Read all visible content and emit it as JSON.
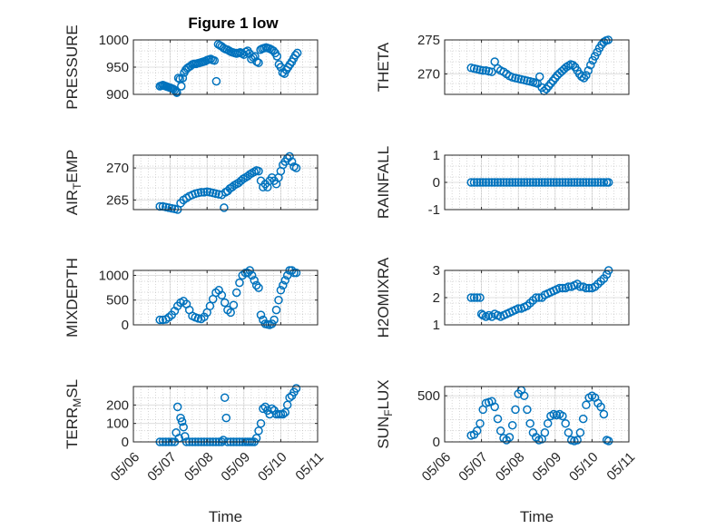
{
  "figure": {
    "title": "Figure 1 low"
  },
  "colors": {
    "marker": "#0072BD",
    "axis": "#262626",
    "grid": "#b0b0b0",
    "background": "#ffffff"
  },
  "chart_data": [
    {
      "type": "scatter",
      "title": "Figure 1 low",
      "ylabel": "PRESSURE",
      "ylim": [
        900,
        1000
      ],
      "yticks": [
        900,
        950,
        1000
      ],
      "xlim": [
        0,
        5
      ],
      "xticks": [
        0,
        1,
        2,
        3,
        4,
        5
      ],
      "xticklabels": [
        "05/06",
        "05/07",
        "05/08",
        "05/09",
        "05/10",
        "05/11"
      ],
      "xlabel": "",
      "grid": true,
      "x": [
        0.72,
        0.76,
        0.8,
        0.84,
        0.88,
        0.92,
        0.96,
        1.0,
        1.04,
        1.08,
        1.12,
        1.16,
        1.18,
        1.22,
        1.26,
        1.3,
        1.34,
        1.38,
        1.42,
        1.46,
        1.5,
        1.55,
        1.6,
        1.65,
        1.7,
        1.75,
        1.8,
        1.85,
        1.9,
        1.95,
        2.0,
        2.05,
        2.1,
        2.15,
        2.2,
        2.25,
        2.3,
        2.35,
        2.4,
        2.45,
        2.5,
        2.55,
        2.6,
        2.65,
        2.7,
        2.75,
        2.8,
        2.85,
        2.9,
        2.95,
        3.0,
        3.05,
        3.1,
        3.15,
        3.2,
        3.25,
        3.3,
        3.35,
        3.4,
        3.45,
        3.5,
        3.55,
        3.6,
        3.65,
        3.7,
        3.75,
        3.8,
        3.85,
        3.9,
        3.95,
        4.0,
        4.05,
        4.1,
        4.15,
        4.2,
        4.25,
        4.3,
        4.35,
        4.4,
        4.45
      ],
      "y": [
        915,
        916,
        917,
        916,
        915,
        914,
        913,
        912,
        911,
        910,
        908,
        905,
        903,
        930,
        928,
        915,
        930,
        940,
        945,
        948,
        950,
        952,
        955,
        956,
        956,
        957,
        958,
        959,
        960,
        961,
        963,
        964,
        965,
        963,
        962,
        924,
        992,
        990,
        988,
        985,
        983,
        982,
        980,
        978,
        977,
        976,
        975,
        976,
        977,
        975,
        973,
        978,
        980,
        975,
        965,
        968,
        970,
        960,
        958,
        982,
        984,
        985,
        986,
        985,
        984,
        982,
        980,
        976,
        970,
        955,
        950,
        940,
        938,
        945,
        950,
        955,
        960,
        966,
        972,
        976
      ]
    },
    {
      "type": "scatter",
      "ylabel": "THETA",
      "ylim": [
        267,
        275
      ],
      "yticks": [
        270,
        275
      ],
      "xlim": [
        0,
        5
      ],
      "xticks": [
        0,
        1,
        2,
        3,
        4,
        5
      ],
      "xticklabels": [
        "05/06",
        "05/07",
        "05/08",
        "05/09",
        "05/10",
        "05/11"
      ],
      "xlabel": "",
      "grid": true,
      "x": [
        0.72,
        0.8,
        0.88,
        0.96,
        1.04,
        1.12,
        1.2,
        1.28,
        1.36,
        1.44,
        1.52,
        1.6,
        1.68,
        1.76,
        1.84,
        1.92,
        2.0,
        2.08,
        2.16,
        2.24,
        2.32,
        2.4,
        2.46,
        2.52,
        2.58,
        2.64,
        2.7,
        2.76,
        2.82,
        2.88,
        2.94,
        3.0,
        3.06,
        3.12,
        3.18,
        3.24,
        3.3,
        3.36,
        3.42,
        3.48,
        3.54,
        3.6,
        3.66,
        3.72,
        3.78,
        3.84,
        3.9,
        3.96,
        4.02,
        4.08,
        4.14,
        4.2,
        4.26,
        4.32,
        4.38,
        4.44
      ],
      "y": [
        270.9,
        270.8,
        270.7,
        270.6,
        270.5,
        270.5,
        270.4,
        270.3,
        271.8,
        270.8,
        270.5,
        270.3,
        270.0,
        269.7,
        269.5,
        269.4,
        269.3,
        269.2,
        269.1,
        269.0,
        268.9,
        268.8,
        268.7,
        268.6,
        269.6,
        268.0,
        267.5,
        267.8,
        268.2,
        268.6,
        269.0,
        269.4,
        269.8,
        270.1,
        270.4,
        270.7,
        271.0,
        271.2,
        271.4,
        271.3,
        271.0,
        270.5,
        270.0,
        269.6,
        269.4,
        269.8,
        270.5,
        271.3,
        272.0,
        272.6,
        273.2,
        273.8,
        274.3,
        274.7,
        274.9,
        275.0
      ]
    },
    {
      "type": "scatter",
      "ylabel": "AIR_TEMP",
      "ylim": [
        263.5,
        272
      ],
      "yticks": [
        265,
        270
      ],
      "xlim": [
        0,
        5
      ],
      "xticks": [
        0,
        1,
        2,
        3,
        4,
        5
      ],
      "xticklabels": [
        "05/06",
        "05/07",
        "05/08",
        "05/09",
        "05/10",
        "05/11"
      ],
      "xlabel": "",
      "grid": true,
      "x": [
        0.72,
        0.8,
        0.88,
        0.96,
        1.04,
        1.12,
        1.2,
        1.28,
        1.36,
        1.44,
        1.52,
        1.6,
        1.68,
        1.76,
        1.84,
        1.92,
        2.0,
        2.08,
        2.16,
        2.24,
        2.32,
        2.4,
        2.46,
        2.5,
        2.56,
        2.62,
        2.68,
        2.74,
        2.8,
        2.86,
        2.92,
        2.98,
        3.04,
        3.1,
        3.16,
        3.22,
        3.28,
        3.34,
        3.4,
        3.46,
        3.52,
        3.58,
        3.64,
        3.7,
        3.76,
        3.82,
        3.88,
        3.94,
        4.0,
        4.06,
        4.12,
        4.18,
        4.24,
        4.3,
        4.36,
        4.42
      ],
      "y": [
        264.0,
        264.0,
        263.9,
        263.8,
        263.7,
        263.6,
        263.5,
        264.5,
        265.0,
        265.3,
        265.6,
        265.8,
        266.0,
        266.1,
        266.2,
        266.2,
        266.3,
        266.2,
        266.1,
        266.0,
        265.9,
        265.8,
        263.8,
        266.2,
        266.4,
        266.8,
        267.0,
        267.3,
        267.5,
        267.7,
        268.0,
        268.3,
        268.5,
        268.7,
        269.0,
        269.2,
        269.4,
        269.6,
        269.5,
        268.0,
        267.0,
        267.5,
        267.0,
        268.0,
        268.5,
        268.0,
        267.5,
        268.5,
        269.5,
        270.5,
        271.0,
        271.5,
        271.8,
        271.0,
        270.2,
        270.0
      ]
    },
    {
      "type": "scatter",
      "ylabel": "RAINFALL",
      "ylim": [
        -1,
        1
      ],
      "yticks": [
        -1,
        0,
        1
      ],
      "xlim": [
        0,
        5
      ],
      "xticks": [
        0,
        1,
        2,
        3,
        4,
        5
      ],
      "xticklabels": [
        "05/06",
        "05/07",
        "05/08",
        "05/09",
        "05/10",
        "05/11"
      ],
      "xlabel": "",
      "grid": true,
      "x": [
        0.72,
        0.8,
        0.88,
        0.96,
        1.04,
        1.12,
        1.2,
        1.28,
        1.36,
        1.44,
        1.52,
        1.6,
        1.68,
        1.76,
        1.84,
        1.92,
        2.0,
        2.08,
        2.16,
        2.24,
        2.32,
        2.4,
        2.48,
        2.56,
        2.64,
        2.72,
        2.8,
        2.88,
        2.96,
        3.04,
        3.12,
        3.2,
        3.28,
        3.36,
        3.44,
        3.52,
        3.6,
        3.68,
        3.76,
        3.84,
        3.92,
        4.0,
        4.08,
        4.16,
        4.24,
        4.32,
        4.4,
        4.45
      ],
      "y": [
        0,
        0,
        0,
        0,
        0,
        0,
        0,
        0,
        0,
        0,
        0,
        0,
        0,
        0,
        0,
        0,
        0,
        0,
        0,
        0,
        0,
        0,
        0,
        0,
        0,
        0,
        0,
        0,
        0,
        0,
        0,
        0,
        0,
        0,
        0,
        0,
        0,
        0,
        0,
        0,
        0,
        0,
        0,
        0,
        0,
        0,
        0,
        0
      ]
    },
    {
      "type": "scatter",
      "ylabel": "MIXDEPTH",
      "ylim": [
        0,
        1100
      ],
      "yticks": [
        0,
        500,
        1000
      ],
      "xlim": [
        0,
        5
      ],
      "xticks": [
        0,
        1,
        2,
        3,
        4,
        5
      ],
      "xticklabels": [
        "05/06",
        "05/07",
        "05/08",
        "05/09",
        "05/10",
        "05/11"
      ],
      "xlabel": "",
      "grid": true,
      "x": [
        0.72,
        0.8,
        0.88,
        0.96,
        1.04,
        1.12,
        1.2,
        1.28,
        1.36,
        1.44,
        1.52,
        1.6,
        1.68,
        1.76,
        1.84,
        1.92,
        2.0,
        2.08,
        2.16,
        2.24,
        2.32,
        2.4,
        2.48,
        2.56,
        2.64,
        2.72,
        2.8,
        2.88,
        2.96,
        3.04,
        3.1,
        3.16,
        3.22,
        3.28,
        3.34,
        3.4,
        3.46,
        3.52,
        3.58,
        3.64,
        3.7,
        3.76,
        3.82,
        3.88,
        3.94,
        4.0,
        4.06,
        4.12,
        4.18,
        4.24,
        4.3,
        4.36,
        4.42
      ],
      "y": [
        100,
        100,
        110,
        150,
        200,
        280,
        380,
        450,
        480,
        420,
        300,
        180,
        150,
        130,
        120,
        160,
        250,
        380,
        520,
        650,
        700,
        600,
        450,
        300,
        250,
        400,
        650,
        850,
        1000,
        1050,
        1050,
        1100,
        1000,
        900,
        800,
        750,
        200,
        100,
        20,
        10,
        0,
        20,
        100,
        300,
        500,
        700,
        800,
        900,
        1000,
        1100,
        1100,
        1050,
        1050
      ]
    },
    {
      "type": "scatter",
      "ylabel": "H2OMIXRA",
      "ylim": [
        1,
        3
      ],
      "yticks": [
        1,
        2,
        3
      ],
      "xlim": [
        0,
        5
      ],
      "xticks": [
        0,
        1,
        2,
        3,
        4,
        5
      ],
      "xticklabels": [
        "05/06",
        "05/07",
        "05/08",
        "05/09",
        "05/10",
        "05/11"
      ],
      "xlabel": "",
      "grid": true,
      "x": [
        0.72,
        0.8,
        0.88,
        0.96,
        1.0,
        1.04,
        1.12,
        1.2,
        1.28,
        1.36,
        1.44,
        1.52,
        1.6,
        1.68,
        1.76,
        1.84,
        1.92,
        2.0,
        2.08,
        2.16,
        2.24,
        2.32,
        2.4,
        2.48,
        2.56,
        2.64,
        2.72,
        2.8,
        2.88,
        2.96,
        3.04,
        3.12,
        3.2,
        3.28,
        3.36,
        3.44,
        3.52,
        3.6,
        3.68,
        3.76,
        3.84,
        3.92,
        4.0,
        4.08,
        4.16,
        4.24,
        4.32,
        4.4,
        4.45
      ],
      "y": [
        2.0,
        2.0,
        2.0,
        2.0,
        1.4,
        1.35,
        1.3,
        1.35,
        1.3,
        1.4,
        1.35,
        1.3,
        1.35,
        1.4,
        1.45,
        1.5,
        1.55,
        1.6,
        1.6,
        1.65,
        1.7,
        1.8,
        1.9,
        2.0,
        2.0,
        2.0,
        2.1,
        2.15,
        2.2,
        2.25,
        2.3,
        2.35,
        2.35,
        2.35,
        2.4,
        2.4,
        2.45,
        2.5,
        2.4,
        2.4,
        2.35,
        2.35,
        2.35,
        2.4,
        2.5,
        2.6,
        2.7,
        2.85,
        3.0
      ]
    },
    {
      "type": "scatter",
      "ylabel": "TERR_MSL",
      "ylim": [
        0,
        300
      ],
      "yticks": [
        0,
        100,
        200
      ],
      "xlim": [
        0,
        5
      ],
      "xticks": [
        0,
        1,
        2,
        3,
        4,
        5
      ],
      "xticklabels": [
        "05/06",
        "05/07",
        "05/08",
        "05/09",
        "05/10",
        "05/11"
      ],
      "xlabel": "Time",
      "grid": true,
      "x": [
        0.72,
        0.8,
        0.88,
        0.96,
        1.04,
        1.12,
        1.16,
        1.2,
        1.24,
        1.28,
        1.32,
        1.36,
        1.4,
        1.44,
        1.52,
        1.6,
        1.68,
        1.76,
        1.84,
        1.92,
        2.0,
        2.08,
        2.16,
        2.24,
        2.32,
        2.4,
        2.44,
        2.48,
        2.52,
        2.56,
        2.64,
        2.72,
        2.8,
        2.88,
        2.96,
        3.04,
        3.1,
        3.16,
        3.22,
        3.28,
        3.34,
        3.4,
        3.46,
        3.52,
        3.58,
        3.64,
        3.7,
        3.76,
        3.82,
        3.88,
        3.94,
        4.0,
        4.06,
        4.12,
        4.18,
        4.24,
        4.3,
        4.36,
        4.42
      ],
      "y": [
        0,
        0,
        0,
        0,
        0,
        0,
        50,
        190,
        20,
        130,
        110,
        80,
        30,
        0,
        0,
        0,
        0,
        0,
        0,
        0,
        0,
        0,
        0,
        0,
        0,
        0,
        10,
        240,
        130,
        0,
        0,
        0,
        0,
        0,
        0,
        0,
        0,
        0,
        0,
        0,
        20,
        60,
        100,
        180,
        190,
        170,
        150,
        180,
        170,
        150,
        150,
        150,
        150,
        160,
        200,
        240,
        250,
        270,
        290
      ]
    },
    {
      "type": "scatter",
      "ylabel": "SUN_FLUX",
      "ylim": [
        0,
        600
      ],
      "yticks": [
        0,
        500
      ],
      "xlim": [
        0,
        5
      ],
      "xticks": [
        0,
        1,
        2,
        3,
        4,
        5
      ],
      "xticklabels": [
        "05/06",
        "05/07",
        "05/08",
        "05/09",
        "05/10",
        "05/11"
      ],
      "xlabel": "Time",
      "grid": true,
      "x": [
        0.72,
        0.8,
        0.88,
        0.96,
        1.04,
        1.12,
        1.2,
        1.28,
        1.36,
        1.44,
        1.52,
        1.6,
        1.68,
        1.76,
        1.84,
        1.92,
        2.0,
        2.08,
        2.16,
        2.24,
        2.32,
        2.4,
        2.48,
        2.56,
        2.64,
        2.72,
        2.8,
        2.88,
        2.96,
        3.04,
        3.12,
        3.2,
        3.28,
        3.36,
        3.44,
        3.52,
        3.6,
        3.68,
        3.76,
        3.84,
        3.92,
        4.0,
        4.08,
        4.16,
        4.24,
        4.32,
        4.4,
        4.45
      ],
      "y": [
        70,
        80,
        120,
        200,
        350,
        420,
        430,
        440,
        380,
        250,
        120,
        40,
        20,
        50,
        180,
        350,
        520,
        560,
        500,
        350,
        200,
        100,
        50,
        20,
        30,
        100,
        200,
        280,
        300,
        290,
        300,
        280,
        200,
        100,
        20,
        10,
        20,
        100,
        250,
        400,
        480,
        500,
        480,
        420,
        380,
        300,
        20,
        10
      ]
    }
  ]
}
